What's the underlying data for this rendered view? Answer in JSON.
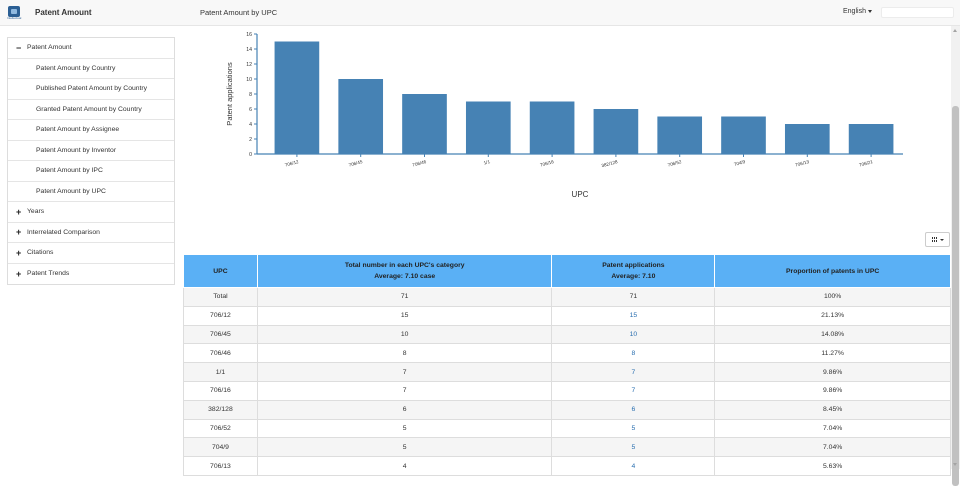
{
  "header": {
    "app_title": "Patent Amount",
    "page_title": "Patent Amount by UPC",
    "language": "English",
    "logo_caption": "Intellectual"
  },
  "sidebar": {
    "sections": [
      {
        "label": "Patent Amount",
        "sign": "−",
        "expanded": true,
        "items": [
          {
            "label": "Patent Amount by Country"
          },
          {
            "label": "Published Patent Amount by Country"
          },
          {
            "label": "Granted Patent Amount by Country"
          },
          {
            "label": "Patent Amount by Assignee"
          },
          {
            "label": "Patent Amount by Inventor"
          },
          {
            "label": "Patent Amount by IPC"
          },
          {
            "label": "Patent Amount by UPC"
          }
        ]
      },
      {
        "label": "Years",
        "sign": "+",
        "expanded": false,
        "items": []
      },
      {
        "label": "Interrelated Comparison",
        "sign": "+",
        "expanded": false,
        "items": []
      },
      {
        "label": "Citations",
        "sign": "+",
        "expanded": false,
        "items": []
      },
      {
        "label": "Patent Trends",
        "sign": "+",
        "expanded": false,
        "items": []
      }
    ]
  },
  "chart_data": {
    "type": "bar",
    "categories": [
      "706/12",
      "706/45",
      "706/46",
      "1/1",
      "706/16",
      "382/128",
      "706/52",
      "704/9",
      "706/13",
      "706/21"
    ],
    "values": [
      15,
      10,
      8,
      7,
      7,
      6,
      5,
      5,
      4,
      4
    ],
    "xlabel": "UPC",
    "ylabel": "Patent applications",
    "ylim": [
      0,
      16
    ],
    "yticks": [
      0,
      2,
      4,
      6,
      8,
      10,
      12,
      14,
      16
    ],
    "bar_color": "#4682b4",
    "grid": false,
    "legend": "none"
  },
  "table": {
    "headers": [
      {
        "line1": "UPC",
        "line2": ""
      },
      {
        "line1": "Total number in each UPC's category",
        "line2": "Average: 7.10 case"
      },
      {
        "line1": "Patent applications",
        "line2": "Average: 7.10"
      },
      {
        "line1": "Proportion of patents in UPC",
        "line2": ""
      }
    ],
    "rows": [
      [
        "Total",
        "71",
        "71",
        "100%"
      ],
      [
        "706/12",
        "15",
        "15",
        "21.13%"
      ],
      [
        "706/45",
        "10",
        "10",
        "14.08%"
      ],
      [
        "706/46",
        "8",
        "8",
        "11.27%"
      ],
      [
        "1/1",
        "7",
        "7",
        "9.86%"
      ],
      [
        "706/16",
        "7",
        "7",
        "9.86%"
      ],
      [
        "382/128",
        "6",
        "6",
        "8.45%"
      ],
      [
        "706/52",
        "5",
        "5",
        "7.04%"
      ],
      [
        "704/9",
        "5",
        "5",
        "7.04%"
      ],
      [
        "706/13",
        "4",
        "4",
        "5.63%"
      ]
    ],
    "header_color": "#5ab0f5",
    "link_color": "#2a6fb0"
  }
}
